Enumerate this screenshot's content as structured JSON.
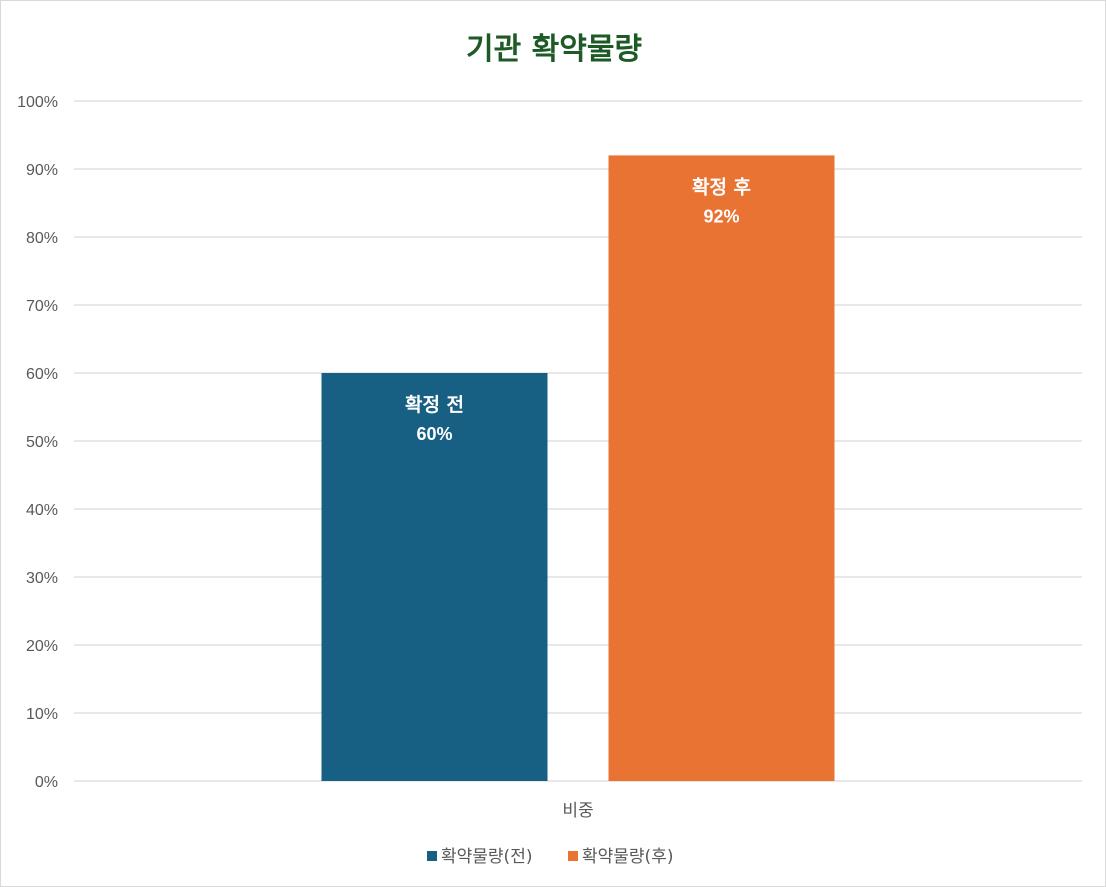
{
  "chart_data": {
    "type": "bar",
    "title": "기관 확약물량",
    "categories": [
      "비중"
    ],
    "ylim": [
      0,
      100
    ],
    "y_ticks": [
      "0%",
      "10%",
      "20%",
      "30%",
      "40%",
      "50%",
      "60%",
      "70%",
      "80%",
      "90%",
      "100%"
    ],
    "grid": true,
    "legend_position": "bottom",
    "series": [
      {
        "name": "확약물량(전)",
        "values": [
          60
        ],
        "data_label_name": "확정 전",
        "data_label_value": "60%",
        "color": "#175f83"
      },
      {
        "name": "확약물량(후)",
        "values": [
          92
        ],
        "data_label_name": "확정 후",
        "data_label_value": "92%",
        "color": "#e97333"
      }
    ]
  }
}
